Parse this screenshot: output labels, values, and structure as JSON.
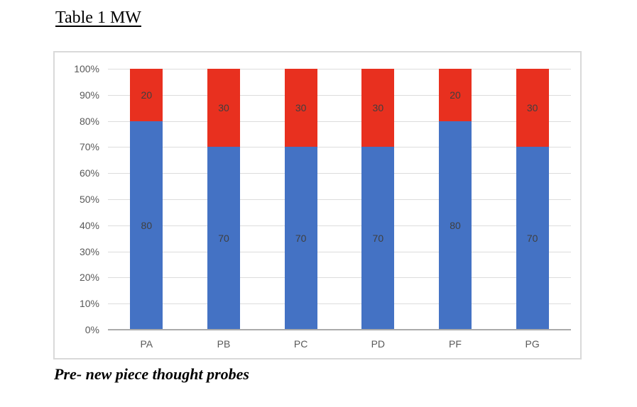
{
  "document": {
    "title": "Table 1 MW",
    "caption": "Pre- new piece thought probes"
  },
  "chart_data": {
    "type": "bar",
    "subtype": "stacked-100-percent",
    "title": "",
    "xlabel": "",
    "ylabel": "",
    "categories": [
      "PA",
      "PB",
      "PC",
      "PD",
      "PF",
      "PG"
    ],
    "series": [
      {
        "name": "blue-segment",
        "color": "#4472C4",
        "values": [
          80,
          70,
          70,
          70,
          80,
          70
        ]
      },
      {
        "name": "red-segment",
        "color": "#E8301F",
        "values": [
          20,
          30,
          30,
          30,
          20,
          30
        ]
      }
    ],
    "y_ticks": [
      "100%",
      "90%",
      "80%",
      "70%",
      "60%",
      "50%",
      "40%",
      "30%",
      "20%",
      "10%",
      "0%"
    ],
    "ylim": [
      0,
      100
    ],
    "grid": true,
    "legend": false,
    "colors": {
      "grid": "#DCDCDC",
      "axis_line": "#ABABAB",
      "tick_text": "#595959",
      "data_label_text": "#3F3F3F",
      "frame_border": "#D9D9D9"
    }
  }
}
